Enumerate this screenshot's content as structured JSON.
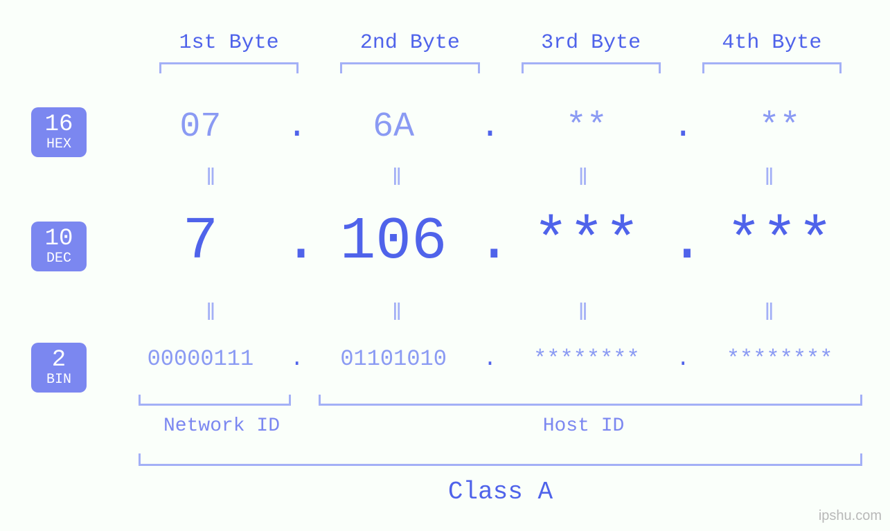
{
  "colors": {
    "background": "#fafffa",
    "primary": "#4f63ea",
    "secondary": "#8a9af3",
    "bracket": "#a3b0f6",
    "badge_bg": "#7b87f0",
    "badge_text": "#ffffff",
    "watermark": "#b8b8b8"
  },
  "fontsizes": {
    "byte_label": 30,
    "hex": 50,
    "dec": 86,
    "bin": 32,
    "equals": 34,
    "netid": 28,
    "class": 36,
    "badge_num": 34,
    "badge_lbl": 20
  },
  "byte_labels": [
    "1st Byte",
    "2nd Byte",
    "3rd Byte",
    "4th Byte"
  ],
  "badges": {
    "hex": {
      "num": "16",
      "lbl": "HEX"
    },
    "dec": {
      "num": "10",
      "lbl": "DEC"
    },
    "bin": {
      "num": "2",
      "lbl": "BIN"
    }
  },
  "hex": [
    "07",
    "6A",
    "**",
    "**"
  ],
  "dec": [
    "7",
    "106",
    "***",
    "***"
  ],
  "bin": [
    "00000111",
    "01101010",
    "********",
    "********"
  ],
  "dot": ".",
  "equals": "ǁ",
  "net_label": "Network ID",
  "host_label": "Host ID",
  "class_label": "Class A",
  "watermark": "ipshu.com"
}
